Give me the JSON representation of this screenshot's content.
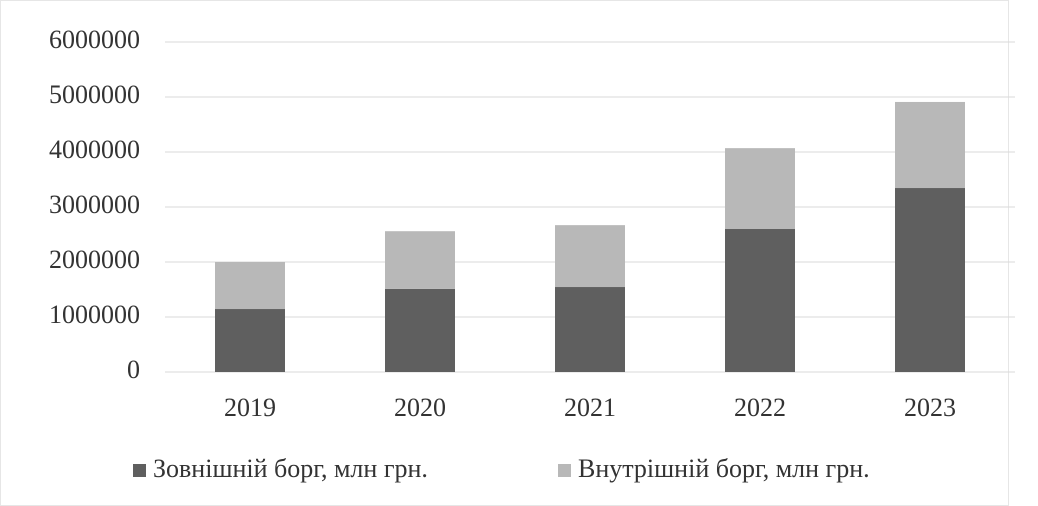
{
  "chart_data": {
    "type": "stacked_bar",
    "categories": [
      "2019",
      "2020",
      "2021",
      "2022",
      "2023"
    ],
    "series": [
      {
        "name": "Зовнішній борг, млн грн.",
        "color": "#5f5f5f",
        "values": [
          1145000,
          1510000,
          1545000,
          2600000,
          3345000
        ]
      },
      {
        "name": "Внутрішній борг, млн грн.",
        "color": "#b8b8b8",
        "values": [
          855000,
          1050000,
          1125000,
          1470000,
          1565000
        ]
      }
    ],
    "ylim": [
      0,
      6000000
    ],
    "yticks": [
      0,
      1000000,
      2000000,
      3000000,
      4000000,
      5000000,
      6000000
    ],
    "grid": true,
    "legend": "bottom"
  }
}
